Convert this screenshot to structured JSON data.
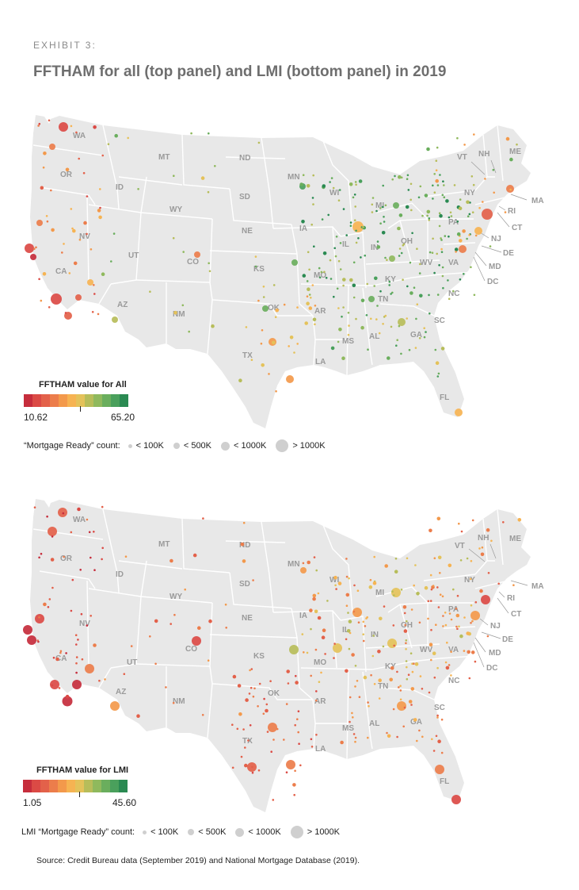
{
  "exhibit_label": "EXHIBIT 3:",
  "title": "FFTHAM for all (top panel) and LMI (bottom panel) in 2019",
  "source": "Source: Credit Bureau data (September 2019) and National Mortgage Database (2019).",
  "colors": {
    "map_land": "#e8e8e8",
    "state_border": "#ffffff",
    "bubble_size_legend": "#cfcfcf",
    "scale": [
      "#c62d3c",
      "#db4a45",
      "#e3614a",
      "#ec7d4b",
      "#f3994b",
      "#f6b352",
      "#e4c25a",
      "#b7bd5a",
      "#8fb95d",
      "#6aae5d",
      "#4aa05c",
      "#2a8a52"
    ]
  },
  "state_labels": [
    "WA",
    "OR",
    "MT",
    "ID",
    "WY",
    "ND",
    "SD",
    "MN",
    "NE",
    "IA",
    "NV",
    "UT",
    "CO",
    "CA",
    "AZ",
    "NM",
    "KS",
    "MO",
    "OK",
    "AR",
    "TX",
    "LA",
    "MS",
    "AL",
    "TN",
    "KY",
    "GA",
    "SC",
    "NC",
    "VA",
    "WV",
    "OH",
    "IN",
    "IL",
    "MI",
    "WI",
    "PA",
    "NY",
    "VT",
    "NH",
    "ME",
    "MA",
    "RI",
    "CT",
    "NJ",
    "DE",
    "MD",
    "DC",
    "FL"
  ],
  "panels": [
    {
      "id": "all",
      "legend_title": "FFTHAM value for All",
      "range_min": "10.62",
      "range_max": "65.20",
      "size_legend_label": "“Mortgage Ready” count:",
      "size_classes": [
        "< 100K",
        "< 500K",
        "< 1000K",
        "> 1000K"
      ],
      "bubbles": [
        {
          "state": "CA",
          "location": "Los Angeles",
          "size": 4,
          "color": 1
        },
        {
          "state": "CA",
          "location": "San Diego",
          "size": 3,
          "color": 2
        },
        {
          "state": "CA",
          "location": "San Francisco",
          "size": 3,
          "color": 1
        },
        {
          "state": "CA",
          "location": "San Jose",
          "size": 2,
          "color": 0
        },
        {
          "state": "CA",
          "location": "Riverside",
          "size": 2,
          "color": 2
        },
        {
          "state": "CA",
          "location": "Sacramento",
          "size": 2,
          "color": 3
        },
        {
          "state": "WA",
          "location": "Seattle",
          "size": 3,
          "color": 1
        },
        {
          "state": "OR",
          "location": "Portland",
          "size": 2,
          "color": 3
        },
        {
          "state": "NY",
          "location": "New York",
          "size": 4,
          "color": 2
        },
        {
          "state": "MA",
          "location": "Boston",
          "size": 3,
          "color": 3
        },
        {
          "state": "PA",
          "location": "Philadelphia",
          "size": 3,
          "color": 5
        },
        {
          "state": "DC",
          "location": "Washington",
          "size": 3,
          "color": 3
        },
        {
          "state": "IL",
          "location": "Chicago",
          "size": 4,
          "color": 5
        },
        {
          "state": "FL",
          "location": "Miami",
          "size": 3,
          "color": 5
        },
        {
          "state": "TX",
          "location": "Houston",
          "size": 3,
          "color": 4
        },
        {
          "state": "TX",
          "location": "Dallas",
          "size": 3,
          "color": 4
        },
        {
          "state": "GA",
          "location": "Atlanta",
          "size": 3,
          "color": 7
        },
        {
          "state": "AZ",
          "location": "Phoenix",
          "size": 3,
          "color": 7
        },
        {
          "state": "CO",
          "location": "Denver",
          "size": 2,
          "color": 3
        },
        {
          "state": "NV",
          "location": "Las Vegas",
          "size": 2,
          "color": 5
        },
        {
          "state": "MO",
          "location": "Kansas City",
          "size": 2,
          "color": 9
        },
        {
          "state": "OK",
          "location": "Oklahoma City",
          "size": 2,
          "color": 9
        },
        {
          "state": "MI",
          "location": "Detroit",
          "size": 2,
          "color": 9
        },
        {
          "state": "OH",
          "location": "Columbus",
          "size": 2,
          "color": 8
        },
        {
          "state": "MN",
          "location": "Minneapolis",
          "size": 2,
          "color": 10
        },
        {
          "state": "TN",
          "location": "Nashville",
          "size": 2,
          "color": 9
        }
      ]
    },
    {
      "id": "lmi",
      "legend_title": "FFTHAM value for LMI",
      "range_min": "1.05",
      "range_max": "45.60",
      "size_legend_label": "LMI “Mortgage Ready” count:",
      "size_classes": [
        "< 100K",
        "< 500K",
        "< 1000K",
        "> 1000K"
      ],
      "bubbles": [
        {
          "state": "CA",
          "location": "Los Angeles",
          "size": 4,
          "color": 0
        },
        {
          "state": "CA",
          "location": "San Diego",
          "size": 3,
          "color": 1
        },
        {
          "state": "CA",
          "location": "San Francisco",
          "size": 3,
          "color": 0
        },
        {
          "state": "CA",
          "location": "San Jose",
          "size": 3,
          "color": 0
        },
        {
          "state": "CA",
          "location": "Riverside",
          "size": 3,
          "color": 0
        },
        {
          "state": "CA",
          "location": "Sacramento",
          "size": 3,
          "color": 1
        },
        {
          "state": "WA",
          "location": "Seattle",
          "size": 3,
          "color": 2
        },
        {
          "state": "OR",
          "location": "Portland",
          "size": 3,
          "color": 2
        },
        {
          "state": "AZ",
          "location": "Phoenix",
          "size": 3,
          "color": 4
        },
        {
          "state": "NV",
          "location": "Las Vegas",
          "size": 3,
          "color": 3
        },
        {
          "state": "CO",
          "location": "Denver",
          "size": 3,
          "color": 1
        },
        {
          "state": "TX",
          "location": "Houston",
          "size": 3,
          "color": 3
        },
        {
          "state": "TX",
          "location": "Dallas",
          "size": 3,
          "color": 3
        },
        {
          "state": "TX",
          "location": "San Antonio",
          "size": 3,
          "color": 2
        },
        {
          "state": "FL",
          "location": "Miami",
          "size": 3,
          "color": 1
        },
        {
          "state": "FL",
          "location": "Tampa",
          "size": 3,
          "color": 3
        },
        {
          "state": "NY",
          "location": "New York",
          "size": 3,
          "color": 1
        },
        {
          "state": "IL",
          "location": "Chicago",
          "size": 3,
          "color": 4
        },
        {
          "state": "MO",
          "location": "St. Louis",
          "size": 3,
          "color": 6
        },
        {
          "state": "MO",
          "location": "Kansas City",
          "size": 3,
          "color": 7
        },
        {
          "state": "OH",
          "location": "Columbus",
          "size": 3,
          "color": 6
        },
        {
          "state": "MI",
          "location": "Detroit",
          "size": 3,
          "color": 6
        },
        {
          "state": "MN",
          "location": "Minneapolis",
          "size": 2,
          "color": 4
        },
        {
          "state": "PA",
          "location": "Philadelphia",
          "size": 3,
          "color": 4
        },
        {
          "state": "GA",
          "location": "Atlanta",
          "size": 3,
          "color": 4
        }
      ]
    }
  ]
}
